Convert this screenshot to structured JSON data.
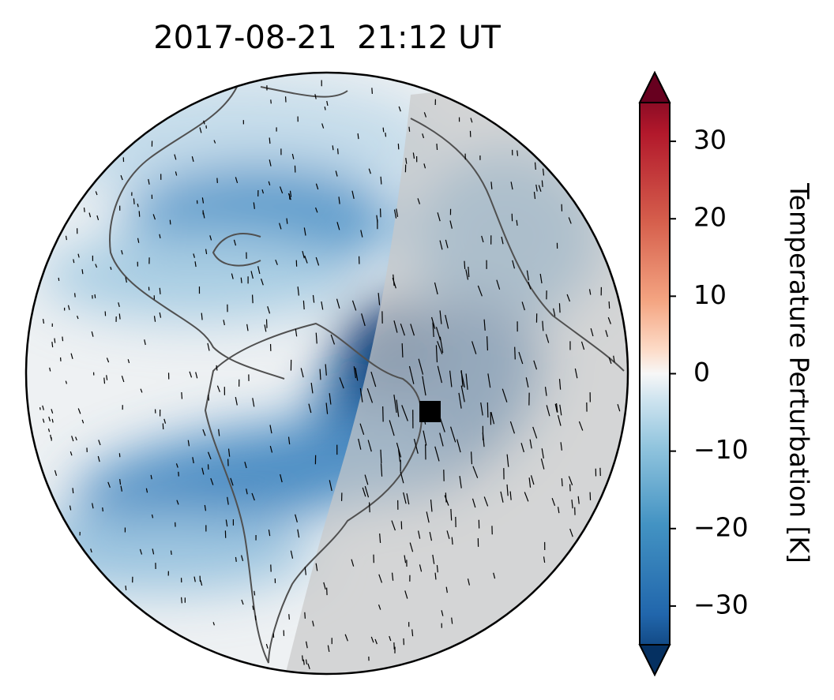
{
  "title": "2017-08-21  21:12 UT",
  "colorbar": {
    "label": "Temperature Perturbation [K]",
    "lim": [
      -35,
      35
    ],
    "ticks": [
      {
        "value": -30,
        "label": "−30"
      },
      {
        "value": -20,
        "label": "−20"
      },
      {
        "value": -10,
        "label": "−10"
      },
      0,
      10,
      20,
      30
    ]
  }
}
